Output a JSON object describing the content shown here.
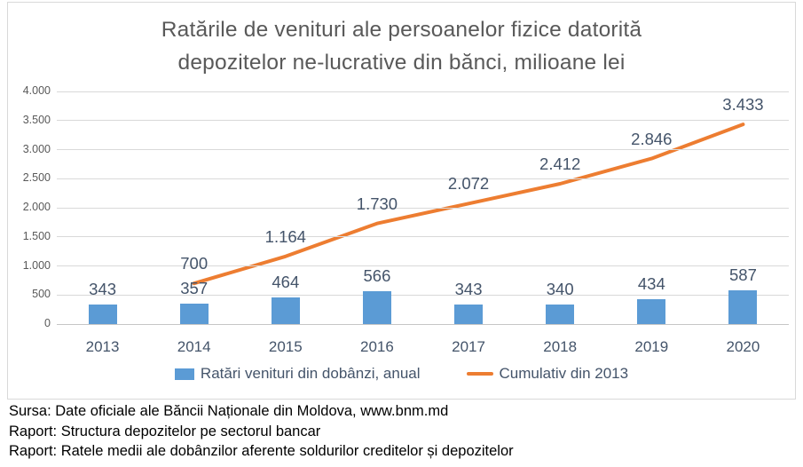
{
  "chart_data": {
    "type": "bar",
    "combo": "bar+line",
    "title": "Ratările de venituri ale persoanelor fizice datorită depozitelor ne-lucrative din bănci, milioane lei",
    "title_lines": [
      "Ratările de venituri ale persoanelor fizice datorită",
      "depozitelor ne-lucrative din bănci, milioane lei"
    ],
    "categories": [
      "2013",
      "2014",
      "2015",
      "2016",
      "2017",
      "2018",
      "2019",
      "2020"
    ],
    "series": [
      {
        "name": "Ratări venituri din dobânzi, anual",
        "type": "bar",
        "color": "#5B9BD5",
        "values": [
          343,
          357,
          464,
          566,
          343,
          340,
          434,
          587
        ],
        "labels": [
          "343",
          "357",
          "464",
          "566",
          "343",
          "340",
          "434",
          "587"
        ]
      },
      {
        "name": "Cumulativ din 2013",
        "type": "line",
        "color": "#ED7D31",
        "values": [
          null,
          700,
          1164,
          1730,
          2072,
          2412,
          2846,
          3433
        ],
        "labels": [
          null,
          "700",
          "1.164",
          "1.730",
          "2.072",
          "2.412",
          "2.846",
          "3.433"
        ]
      }
    ],
    "xlabel": "",
    "ylabel": "",
    "ylim": [
      0,
      4000
    ],
    "ytick_step": 500,
    "ytick_labels": [
      "0",
      "500",
      "1.000",
      "1.500",
      "2.000",
      "2.500",
      "3.000",
      "3.500",
      "4.000"
    ],
    "grid": true,
    "legend_position": "bottom"
  },
  "colors": {
    "bar": "#5B9BD5",
    "line": "#ED7D31",
    "gridline": "#D9D9D9",
    "chart_border": "#D9D9D9",
    "title_text": "#595959",
    "label_text": "#44546A",
    "ytick_text": "#595959",
    "footer_text": "#000000"
  },
  "footer": {
    "lines": [
      "Sursa: Date oficiale ale Băncii Naționale din Moldova, www.bnm.md",
      "Raport: Structura depozitelor pe sectorul bancar",
      "Raport: Ratele medii ale dobânzilor aferente soldurilor creditelor și depozitelor"
    ]
  }
}
